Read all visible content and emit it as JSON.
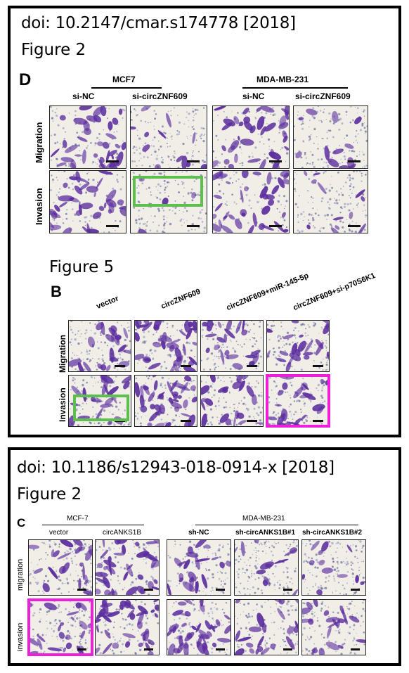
{
  "panels": [
    {
      "doi": "doi: 10.2147/cmar.s174778 [2018]",
      "figure2_title": "Figure 2",
      "figure2_letter": "D",
      "figure2_groups": [
        "MCF7",
        "MDA-MB-231"
      ],
      "figure2_columns": [
        "si-NC",
        "si-circZNF609",
        "si-NC",
        "si-circZNF609"
      ],
      "figure2_rows": [
        "Migration",
        "Invasion"
      ],
      "figure5_title": "Figure 5",
      "figure5_letter": "B",
      "figure5_columns": [
        "vector",
        "circZNF609",
        "circZNF609+miR-145-5p",
        "circZNF609+si-p70S6K1"
      ],
      "figure5_rows": [
        "Migration",
        "Invasion"
      ]
    },
    {
      "doi": "doi: 10.1186/s12943-018-0914-x [2018]",
      "figure2_title": "Figure 2",
      "figure2_letter": "C",
      "groups": [
        "MCF-7",
        "MDA-MB-231"
      ],
      "columns": [
        "vector",
        "circANKS1B",
        "sh-NC",
        "sh-circANKS1B#1",
        "sh-circANKS1B#2"
      ],
      "rows": [
        "migration",
        "invasion"
      ]
    }
  ],
  "colors": {
    "highlight_green": "#5fbf4e",
    "highlight_magenta": "#ee1fd9",
    "stain": "#5b2d9e",
    "background": "#f1eee8"
  }
}
